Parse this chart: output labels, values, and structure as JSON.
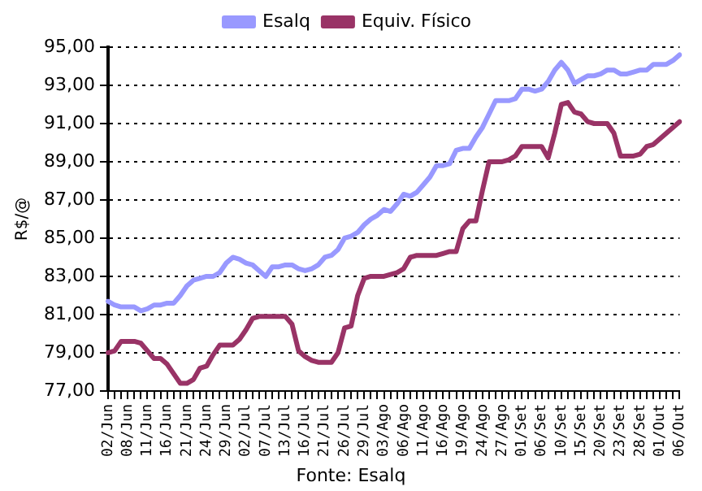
{
  "chart_data": {
    "type": "line",
    "ylabel": "R$/@",
    "annotations": [
      "Fonte: Esalq"
    ],
    "categories": [
      "02/Jun",
      null,
      null,
      "08/Jun",
      null,
      null,
      "11/Jun",
      null,
      null,
      "16/Jun",
      null,
      null,
      "21/Jun",
      null,
      null,
      "24/Jun",
      null,
      null,
      "29/Jun",
      null,
      null,
      "02/Jul",
      null,
      null,
      "07/Jul",
      null,
      null,
      "13/Jul",
      null,
      null,
      "16/Jul",
      null,
      null,
      "21/Jul",
      null,
      null,
      "26/Jul",
      null,
      null,
      "29/Jul",
      null,
      null,
      "03/Ago",
      null,
      null,
      "06/Ago",
      null,
      null,
      "11/Ago",
      null,
      null,
      "16/Ago",
      null,
      null,
      "19/Ago",
      null,
      null,
      "24/Ago",
      null,
      null,
      "27/Ago",
      null,
      null,
      "01/Set",
      null,
      null,
      "06/Set",
      null,
      null,
      "10/Set",
      null,
      null,
      "15/Set",
      null,
      null,
      "20/Set",
      null,
      null,
      "23/Set",
      null,
      null,
      "28/Set",
      null,
      null,
      "01/Out",
      null,
      null,
      "06/Out"
    ],
    "series": [
      {
        "name": "Esalq",
        "color": "#9999ff",
        "values": [
          81.7,
          81.5,
          81.4,
          81.4,
          81.4,
          81.2,
          81.3,
          81.5,
          81.5,
          81.6,
          81.6,
          82.0,
          82.5,
          82.8,
          82.9,
          83.0,
          83.0,
          83.2,
          83.7,
          84.0,
          83.9,
          83.7,
          83.6,
          83.3,
          83.0,
          83.5,
          83.5,
          83.6,
          83.6,
          83.4,
          83.3,
          83.4,
          83.6,
          84.0,
          84.1,
          84.4,
          85.0,
          85.1,
          85.3,
          85.7,
          86.0,
          86.2,
          86.5,
          86.4,
          86.8,
          87.3,
          87.2,
          87.4,
          87.8,
          88.2,
          88.8,
          88.8,
          88.9,
          89.6,
          89.7,
          89.7,
          90.3,
          90.8,
          91.5,
          92.2,
          92.2,
          92.2,
          92.3,
          92.8,
          92.8,
          92.7,
          92.8,
          93.2,
          93.8,
          94.2,
          93.8,
          93.1,
          93.3,
          93.5,
          93.5,
          93.6,
          93.8,
          93.8,
          93.6,
          93.6,
          93.7,
          93.8,
          93.8,
          94.1,
          94.1,
          94.1,
          94.3,
          94.6
        ]
      },
      {
        "name": "Equiv. Físico",
        "color": "#993366",
        "values": [
          79.0,
          79.1,
          79.6,
          79.6,
          79.6,
          79.5,
          79.1,
          78.7,
          78.7,
          78.4,
          77.9,
          77.4,
          77.4,
          77.6,
          78.2,
          78.3,
          78.9,
          79.4,
          79.4,
          79.4,
          79.7,
          80.2,
          80.8,
          80.9,
          80.9,
          80.9,
          80.9,
          80.9,
          80.5,
          79.1,
          78.8,
          78.6,
          78.5,
          78.5,
          78.5,
          79.0,
          80.3,
          80.4,
          82.0,
          82.9,
          83.0,
          83.0,
          83.0,
          83.1,
          83.2,
          83.4,
          84.0,
          84.1,
          84.1,
          84.1,
          84.1,
          84.2,
          84.3,
          84.3,
          85.5,
          85.9,
          85.9,
          87.5,
          89.0,
          89.0,
          89.0,
          89.1,
          89.3,
          89.8,
          89.8,
          89.8,
          89.8,
          89.2,
          90.5,
          92.0,
          92.1,
          91.6,
          91.5,
          91.1,
          91.0,
          91.0,
          91.0,
          90.5,
          89.3,
          89.3,
          89.3,
          89.4,
          89.8,
          89.9,
          90.2,
          90.5,
          90.8,
          91.1
        ]
      }
    ],
    "ylim": [
      77,
      95
    ],
    "yticks": [
      {
        "value": 77,
        "label": "77,00"
      },
      {
        "value": 79,
        "label": "79,00"
      },
      {
        "value": 81,
        "label": "81,00"
      },
      {
        "value": 83,
        "label": "83,00"
      },
      {
        "value": 85,
        "label": "85,00"
      },
      {
        "value": 87,
        "label": "87,00"
      },
      {
        "value": 89,
        "label": "89,00"
      },
      {
        "value": 91,
        "label": "91,00"
      },
      {
        "value": 93,
        "label": "93,00"
      },
      {
        "value": 95,
        "label": "95,00"
      }
    ],
    "grid": "y",
    "legend": "top",
    "marker": "none",
    "line_style": "solid"
  }
}
